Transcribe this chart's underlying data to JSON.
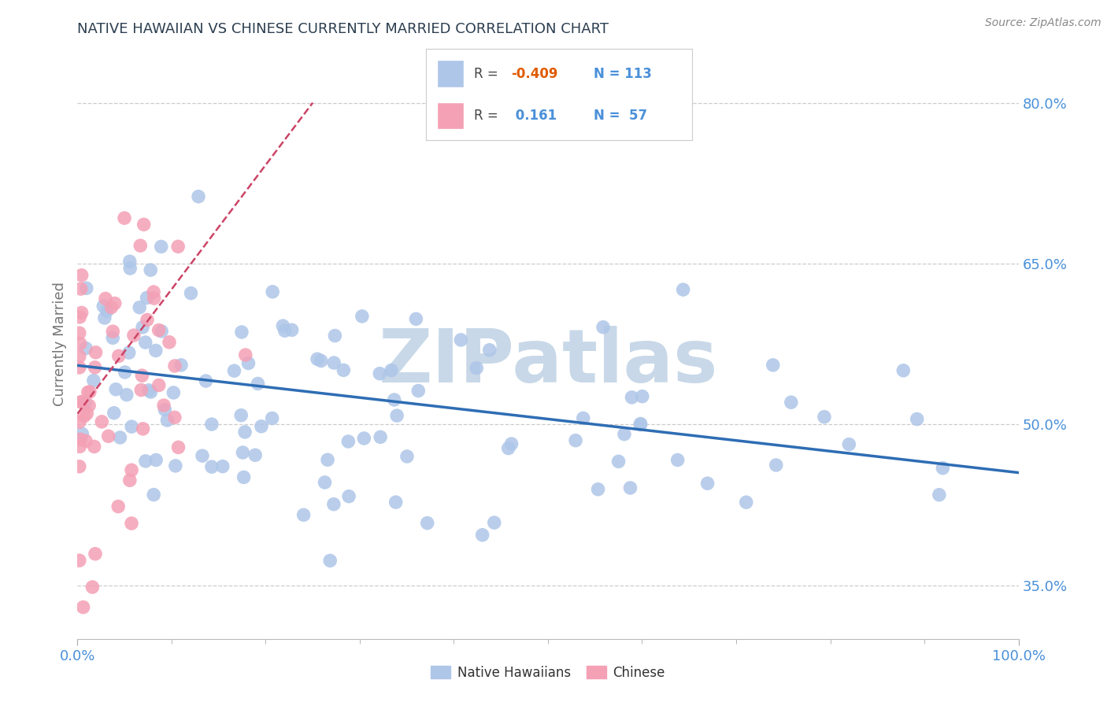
{
  "title": "NATIVE HAWAIIAN VS CHINESE CURRENTLY MARRIED CORRELATION CHART",
  "source_text": "Source: ZipAtlas.com",
  "ylabel": "Currently Married",
  "xlim": [
    0.0,
    1.0
  ],
  "ylim": [
    0.3,
    0.85
  ],
  "yticks": [
    0.35,
    0.5,
    0.65,
    0.8
  ],
  "ytick_labels": [
    "35.0%",
    "50.0%",
    "65.0%",
    "80.0%"
  ],
  "xtick_labels": [
    "0.0%",
    "100.0%"
  ],
  "r_blue": -0.409,
  "n_blue": 113,
  "r_pink": 0.161,
  "n_pink": 57,
  "dot_color_blue": "#aec6e8",
  "dot_color_pink": "#f4a0b5",
  "line_color_blue": "#2e6db4",
  "line_color_pink": "#cc4466",
  "watermark_text": "ZIPatlas",
  "watermark_color": "#c8d8e8",
  "background_color": "#ffffff",
  "title_color": "#2c3e50",
  "axis_label_color": "#777777",
  "grid_color": "#cccccc",
  "tick_label_color": "#4a90d9",
  "legend_r_neg_color": "#e05c00",
  "legend_r_pos_color": "#4a90d9",
  "legend_n_color": "#4a90d9",
  "blue_line_start_y": 0.555,
  "blue_line_end_y": 0.455,
  "pink_line_start_y": 0.51,
  "pink_line_end_y": 0.8,
  "pink_line_end_x": 0.25
}
